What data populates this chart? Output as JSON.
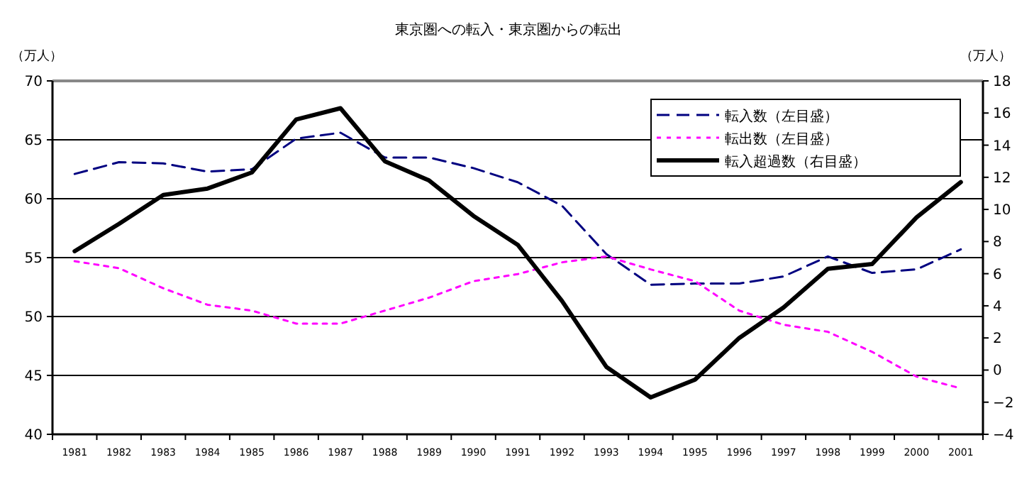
{
  "chart_data": {
    "type": "line",
    "title": "東京圏への転入・東京圏からの転出",
    "ylabel": "（万人）",
    "y2label": "（万人）",
    "categories": [
      "1981",
      "1982",
      "1983",
      "1984",
      "1985",
      "1986",
      "1987",
      "1988",
      "1989",
      "1990",
      "1991",
      "1992",
      "1993",
      "1994",
      "1995",
      "1996",
      "1997",
      "1998",
      "1999",
      "2000",
      "2001"
    ],
    "series": [
      {
        "name": "転入数（左目盛）",
        "color": "#000080",
        "line_style": "dashed",
        "values": [
          62.1,
          63.1,
          63.0,
          62.3,
          62.5,
          65.1,
          65.6,
          63.5,
          63.5,
          62.6,
          61.4,
          59.4,
          55.3,
          52.7,
          52.8,
          52.8,
          53.4,
          55.1,
          53.7,
          54.0,
          55.7
        ]
      },
      {
        "name": "転出数（左目盛）",
        "color": "#ff00ff",
        "line_style": "dotted",
        "values": [
          54.7,
          54.1,
          52.4,
          51.0,
          50.5,
          49.4,
          49.4,
          50.5,
          51.6,
          53.0,
          53.6,
          54.6,
          55.1,
          54.0,
          53.0,
          50.5,
          49.3,
          48.7,
          47.0,
          44.9,
          43.9
        ]
      },
      {
        "name": "転入超過数（右目盛）",
        "color": "#000000",
        "line_style": "solid",
        "axis": "y2",
        "values": [
          7.4,
          9.1,
          10.9,
          11.3,
          12.3,
          15.6,
          16.3,
          13.0,
          11.8,
          9.6,
          7.8,
          4.3,
          0.2,
          -1.7,
          -0.6,
          2.0,
          3.9,
          6.3,
          6.6,
          9.5,
          11.7
        ]
      }
    ],
    "ylim": [
      40,
      70
    ],
    "yticks": [
      40,
      45,
      50,
      55,
      60,
      65,
      70
    ],
    "y2lim": [
      -4,
      18
    ],
    "y2ticks": [
      -4,
      -2,
      0,
      2,
      4,
      6,
      8,
      10,
      12,
      14,
      16,
      18
    ],
    "grid": "y",
    "legend": "top right"
  }
}
